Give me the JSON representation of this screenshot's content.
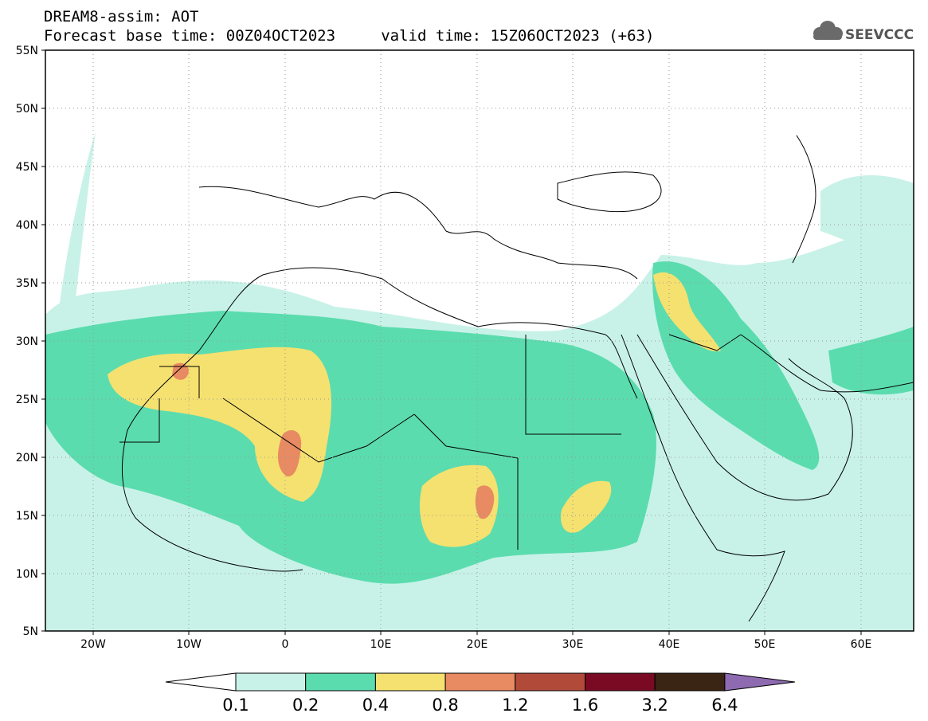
{
  "title_line1": "DREAM8-assim: AOT",
  "title_line2": "Forecast base time: 00Z04OCT2023     valid time: 15Z06OCT2023 (+63)",
  "logo_text": "SEEVCCC",
  "lat_labels": [
    "55N",
    "50N",
    "45N",
    "40N",
    "35N",
    "30N",
    "25N",
    "20N",
    "15N",
    "10N",
    "5N"
  ],
  "lon_labels": [
    "20W",
    "10W",
    "0",
    "10E",
    "20E",
    "30E",
    "40E",
    "50E",
    "60E"
  ],
  "colorbar": {
    "labels": [
      "0.1",
      "0.2",
      "0.4",
      "0.8",
      "1.2",
      "1.6",
      "3.2",
      "6.4"
    ],
    "colors": [
      "#c8f2e8",
      "#5bdcae",
      "#f5e170",
      "#e88a62",
      "#b24a3a",
      "#7a0a24",
      "#3a2414",
      "#8e6bb0"
    ]
  },
  "map_extent": {
    "lon_min": -25,
    "lon_max": 65,
    "lat_min": 5,
    "lat_max": 55
  }
}
